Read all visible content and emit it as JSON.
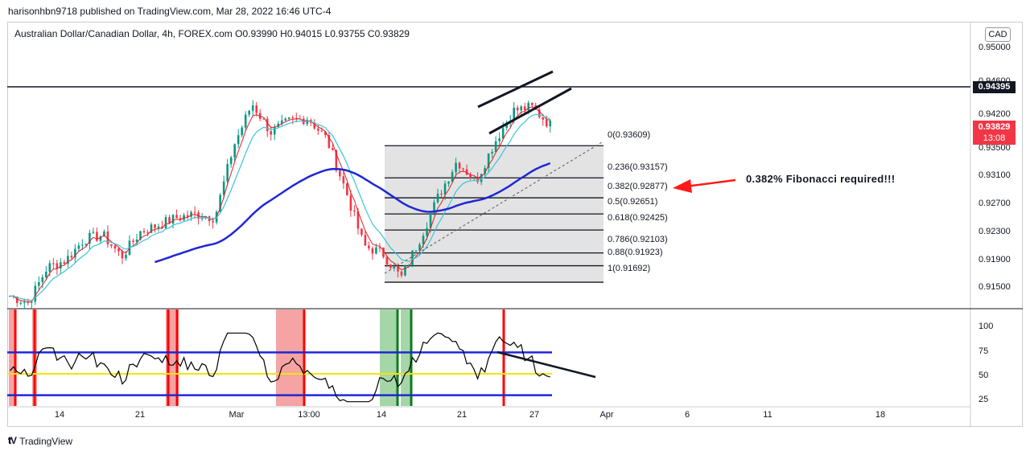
{
  "header": {
    "published_line": "harisonhbn9718 published on TradingView.com, Mar 28, 2022 16:46 UTC-4",
    "symbol_line": "Australian Dollar/Canadian Dollar, 4h, FOREX.com  O0.93990  H0.94015  L0.93755  C0.93829"
  },
  "footer": {
    "logo_icon": "tradingview-logo-icon",
    "logo_text": "TradingView"
  },
  "colors": {
    "bull": "#089981",
    "bear": "#f23645",
    "ema_fast": "#e0202a",
    "ema_mid": "#3cc3d8",
    "ma_slow": "#1f27d6",
    "rsi_band": "#1f27d6",
    "rsi_mid": "#f2e600",
    "fib_fill": "#e3e3e3",
    "highlight_red": "#f5a3a3",
    "highlight_green": "#a5d6a7",
    "signal_red": "#ff0000",
    "signal_green": "#0a7d1e"
  },
  "chart_data": {
    "type": "candlestick",
    "timeframe": "4h",
    "currency": "CAD",
    "y_ticks": [
      "0.95000",
      "0.94600",
      "0.94200",
      "0.93800",
      "0.93500",
      "0.93100",
      "0.92700",
      "0.92300",
      "0.91900",
      "0.91500"
    ],
    "y_range": [
      0.9132,
      0.9535
    ],
    "horizontal_level": "0.94395",
    "last_price": {
      "value": "0.93829",
      "countdown": "13:08"
    },
    "x_ticks": [
      "14",
      "21",
      "Mar",
      "13:00",
      "14",
      "21",
      "27",
      "Apr",
      "6",
      "11",
      "18"
    ],
    "fibonacci": [
      {
        "label": "0(0.93609)",
        "ratio": 0,
        "price": 0.93609
      },
      {
        "label": "0.236(0.93157)",
        "ratio": 0.236,
        "price": 0.93157
      },
      {
        "label": "0.382(0.92877)",
        "ratio": 0.382,
        "price": 0.92877
      },
      {
        "label": "0.5(0.92651)",
        "ratio": 0.5,
        "price": 0.92651
      },
      {
        "label": "0.618(0.92425)",
        "ratio": 0.618,
        "price": 0.92425
      },
      {
        "label": "0.786(0.92103)",
        "ratio": 0.786,
        "price": 0.92103
      },
      {
        "label": "0.88(0.91923)",
        "ratio": 0.88,
        "price": 0.91923
      },
      {
        "label": "1(0.91692)",
        "ratio": 1,
        "price": 0.91692
      }
    ],
    "annotation": "0.382% Fibonacci required!!!",
    "indicator": {
      "y_ticks": [
        "100",
        "75",
        "50",
        "25"
      ],
      "range": [
        20,
        110
      ],
      "upper_band": 70,
      "mid_line": 50,
      "lower_band": 30
    },
    "close_path": [
      [
        0.915,
        0.9135
      ],
      [
        0.914,
        0.917
      ],
      [
        0.919,
        0.9205
      ],
      [
        0.92,
        0.9215
      ],
      [
        0.923,
        0.924
      ],
      [
        0.9235,
        0.9195
      ],
      [
        0.9205,
        0.9245
      ],
      [
        0.924,
        0.923
      ],
      [
        0.925,
        0.9265
      ],
      [
        0.926,
        0.9275
      ],
      [
        0.9265,
        0.9235
      ],
      [
        0.926,
        0.934
      ],
      [
        0.936,
        0.944
      ],
      [
        0.942,
        0.937
      ],
      [
        0.938,
        0.94
      ],
      [
        0.9395,
        0.938
      ],
      [
        0.94,
        0.938
      ],
      [
        0.937,
        0.933
      ],
      [
        0.93,
        0.924
      ],
      [
        0.922,
        0.92
      ],
      [
        0.921,
        0.919
      ],
      [
        0.9175,
        0.92
      ],
      [
        0.923,
        0.928
      ],
      [
        0.929,
        0.933
      ],
      [
        0.934,
        0.932
      ],
      [
        0.931,
        0.934
      ],
      [
        0.9365,
        0.939
      ],
      [
        0.941,
        0.942
      ],
      [
        0.9415,
        0.94
      ],
      [
        0.939,
        0.9383
      ]
    ]
  }
}
